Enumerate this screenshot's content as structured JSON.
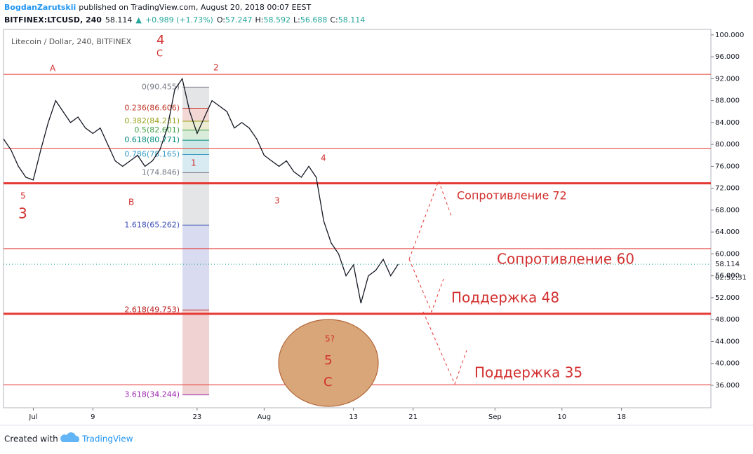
{
  "header": {
    "author": "BogdanZarutskii",
    "published": "published on TradingView.com, August 20, 2018 00:07 EEST",
    "symbol": "BITFINEX:LTCUSD, 240",
    "last": "58.114",
    "arrow": "▲",
    "change": "+0.989 (+1.73%)",
    "quotes": [
      {
        "k": "O:",
        "v": "57.247"
      },
      {
        "k": "H:",
        "v": "58.592"
      },
      {
        "k": "L:",
        "v": "56.688"
      },
      {
        "k": "C:",
        "v": "58.114"
      }
    ]
  },
  "chart_data": {
    "type": "line",
    "title": "Litecoin / Dollar, 240, BITFINEX",
    "x": [
      "06-27",
      "06-28",
      "06-29",
      "06-30",
      "07-01",
      "07-02",
      "07-03",
      "07-04",
      "07-05",
      "07-06",
      "07-07",
      "07-08",
      "07-09",
      "07-10",
      "07-11",
      "07-12",
      "07-13",
      "07-14",
      "07-15",
      "07-16",
      "07-17",
      "07-18",
      "07-19",
      "07-20",
      "07-21",
      "07-22",
      "07-23",
      "07-24",
      "07-25",
      "07-26",
      "07-27",
      "07-28",
      "07-29",
      "07-30",
      "07-31",
      "08-01",
      "08-02",
      "08-03",
      "08-04",
      "08-05",
      "08-06",
      "08-07",
      "08-08",
      "08-09",
      "08-10",
      "08-11",
      "08-12",
      "08-13",
      "08-14",
      "08-15",
      "08-16",
      "08-17",
      "08-18",
      "08-19"
    ],
    "values": [
      81,
      79,
      76,
      74,
      73.5,
      79,
      84,
      88,
      86,
      84,
      85,
      83,
      82,
      83,
      80,
      77,
      76,
      77,
      78,
      76,
      77,
      79,
      83,
      90,
      92,
      86,
      82,
      85,
      88,
      87,
      86,
      83,
      84,
      83,
      81,
      78,
      77,
      76,
      77,
      75,
      74,
      76,
      74,
      66,
      62,
      60,
      56,
      58,
      51,
      56,
      57,
      59,
      56,
      58.114
    ],
    "color": "#131722",
    "xlim": [
      "06-27",
      "09-30"
    ],
    "xticks": [
      {
        "value": "07-01",
        "label": "Jul"
      },
      {
        "value": "07-09",
        "label": "9"
      },
      {
        "value": "07-23",
        "label": "23"
      },
      {
        "value": "08-01",
        "label": "Aug"
      },
      {
        "value": "08-13",
        "label": "13"
      },
      {
        "value": "08-21",
        "label": "21"
      },
      {
        "value": "09-01",
        "label": "Sep"
      },
      {
        "value": "09-10",
        "label": "10"
      },
      {
        "value": "09-18",
        "label": "18"
      }
    ],
    "ylim": [
      31.9,
      101
    ],
    "yticks": [
      {
        "value": 36,
        "label": "36.000"
      },
      {
        "value": 40,
        "label": "40.000"
      },
      {
        "value": 44,
        "label": "44.000"
      },
      {
        "value": 48,
        "label": "48.000"
      },
      {
        "value": 52,
        "label": "52.000"
      },
      {
        "value": 56,
        "label": "56.000"
      },
      {
        "value": 60,
        "label": "60.000"
      },
      {
        "value": 64,
        "label": "64.000"
      },
      {
        "value": 68,
        "label": "68.000"
      },
      {
        "value": 72,
        "label": "72.000"
      },
      {
        "value": 76,
        "label": "76.000"
      },
      {
        "value": 80,
        "label": "80.000"
      },
      {
        "value": 84,
        "label": "84.000"
      },
      {
        "value": 88,
        "label": "88.000"
      },
      {
        "value": 92,
        "label": "92.000"
      },
      {
        "value": 96,
        "label": "96.000"
      },
      {
        "value": 100,
        "label": "100.000"
      }
    ],
    "last_price": {
      "value": 58.114,
      "label": "58.114"
    },
    "countdown": "02:52:31",
    "levels": [
      {
        "value": 92.8,
        "bold": false
      },
      {
        "value": 79.3,
        "bold": false
      },
      {
        "value": 72.9,
        "bold": true
      },
      {
        "value": 60.96,
        "bold": false
      },
      {
        "value": 49.06,
        "bold": true
      },
      {
        "value": 36.1,
        "bold": false
      }
    ],
    "level_color": "#e53935",
    "fib": [
      {
        "value": 90.455,
        "label": "0(90.455)",
        "color": "#787b86"
      },
      {
        "value": 86.606,
        "label": "0.236(86.606)",
        "color": "#c0392b"
      },
      {
        "value": 84.231,
        "label": "0.382(84.231)",
        "color": "#9aa21c"
      },
      {
        "value": 82.601,
        "label": "0.5(82.601)",
        "color": "#43a047"
      },
      {
        "value": 80.771,
        "label": "0.618(80.771)",
        "color": "#00897b"
      },
      {
        "value": 78.165,
        "label": "0.786(78.165)",
        "color": "#3a9bc4"
      },
      {
        "value": 74.846,
        "label": "1(74.846)",
        "color": "#787b86"
      },
      {
        "value": 65.262,
        "label": "1.618(65.262)",
        "color": "#3f51b5"
      },
      {
        "value": 49.753,
        "label": "2.618(49.753)",
        "color": "#b71c1c"
      },
      {
        "value": 34.244,
        "label": "3.618(34.244)",
        "color": "#9c27b0"
      }
    ],
    "waves": [
      "A",
      "4",
      "C",
      "2",
      "5",
      "3",
      "B",
      "1",
      "4",
      "3",
      "5?",
      "5",
      "C"
    ],
    "notes": [
      "Сопротивление 72",
      "Сопротивление 60",
      "Поддержка 48",
      "Поддержка 35"
    ]
  },
  "footer": {
    "created": "Created with",
    "brand": "TradingView"
  }
}
